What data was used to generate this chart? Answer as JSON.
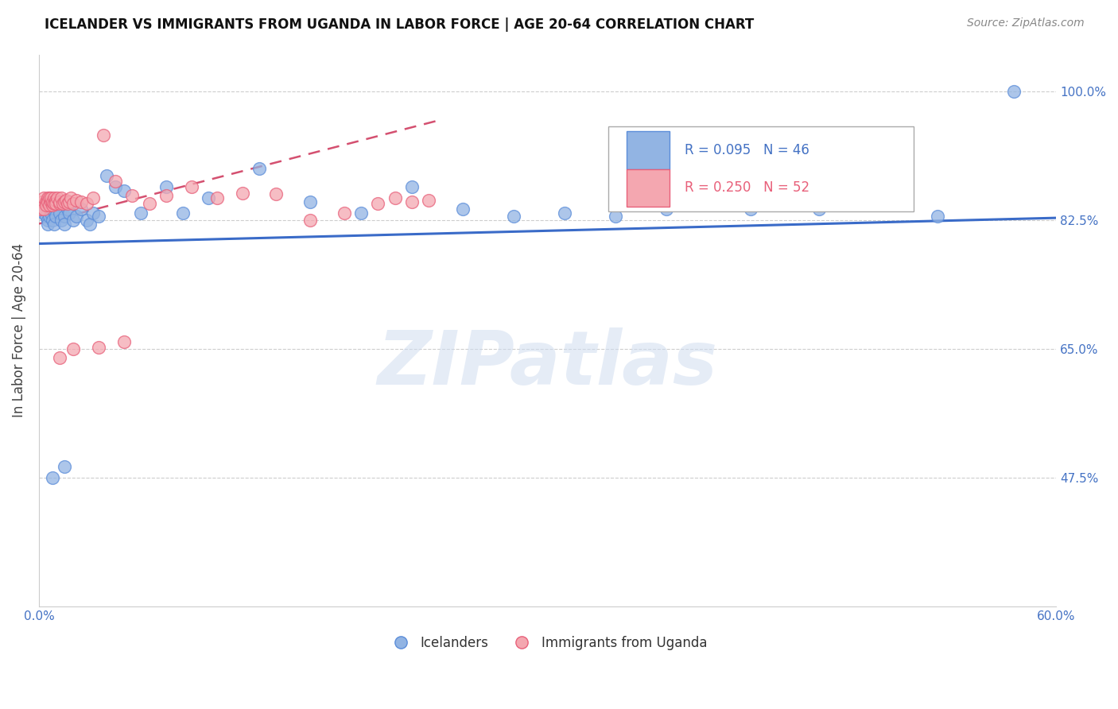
{
  "title": "ICELANDER VS IMMIGRANTS FROM UGANDA IN LABOR FORCE | AGE 20-64 CORRELATION CHART",
  "source": "Source: ZipAtlas.com",
  "ylabel": "In Labor Force | Age 20-64",
  "xlim": [
    0.0,
    0.6
  ],
  "ylim": [
    0.3,
    1.05
  ],
  "yticks": [
    0.475,
    0.65,
    0.825,
    1.0
  ],
  "ytick_labels": [
    "47.5%",
    "65.0%",
    "82.5%",
    "100.0%"
  ],
  "xticks": [
    0.0,
    0.1,
    0.2,
    0.3,
    0.4,
    0.5,
    0.6
  ],
  "xtick_labels": [
    "0.0%",
    "",
    "",
    "",
    "",
    "",
    "60.0%"
  ],
  "blue_color": "#92b4e3",
  "blue_edge_color": "#5b8dd9",
  "pink_color": "#f4a7b0",
  "pink_edge_color": "#e8607a",
  "blue_line_color": "#3a6bc8",
  "pink_line_color": "#d45070",
  "watermark": "ZIPatlas",
  "blue_x": [
    0.002,
    0.003,
    0.004,
    0.005,
    0.005,
    0.006,
    0.007,
    0.008,
    0.008,
    0.009,
    0.01,
    0.012,
    0.013,
    0.015,
    0.015,
    0.017,
    0.018,
    0.02,
    0.022,
    0.025,
    0.028,
    0.03,
    0.032,
    0.035,
    0.04,
    0.045,
    0.05,
    0.06,
    0.075,
    0.085,
    0.1,
    0.13,
    0.16,
    0.19,
    0.22,
    0.25,
    0.28,
    0.31,
    0.34,
    0.37,
    0.42,
    0.46,
    0.53,
    0.575,
    0.008,
    0.015
  ],
  "blue_y": [
    0.84,
    0.835,
    0.83,
    0.825,
    0.82,
    0.83,
    0.835,
    0.84,
    0.825,
    0.82,
    0.83,
    0.835,
    0.825,
    0.83,
    0.82,
    0.84,
    0.835,
    0.825,
    0.83,
    0.84,
    0.825,
    0.82,
    0.835,
    0.83,
    0.885,
    0.87,
    0.865,
    0.835,
    0.87,
    0.835,
    0.855,
    0.895,
    0.85,
    0.835,
    0.87,
    0.84,
    0.83,
    0.835,
    0.83,
    0.84,
    0.84,
    0.84,
    0.83,
    1.0,
    0.475,
    0.49
  ],
  "pink_x": [
    0.001,
    0.002,
    0.003,
    0.003,
    0.004,
    0.004,
    0.005,
    0.005,
    0.006,
    0.006,
    0.007,
    0.007,
    0.008,
    0.008,
    0.009,
    0.009,
    0.01,
    0.01,
    0.011,
    0.012,
    0.012,
    0.013,
    0.014,
    0.015,
    0.016,
    0.017,
    0.018,
    0.019,
    0.02,
    0.022,
    0.025,
    0.028,
    0.032,
    0.038,
    0.045,
    0.055,
    0.065,
    0.075,
    0.09,
    0.105,
    0.12,
    0.14,
    0.16,
    0.18,
    0.2,
    0.21,
    0.22,
    0.23,
    0.02,
    0.035,
    0.05,
    0.012
  ],
  "pink_y": [
    0.84,
    0.85,
    0.855,
    0.84,
    0.85,
    0.845,
    0.855,
    0.85,
    0.855,
    0.845,
    0.85,
    0.855,
    0.845,
    0.85,
    0.855,
    0.848,
    0.852,
    0.848,
    0.855,
    0.848,
    0.85,
    0.855,
    0.848,
    0.85,
    0.852,
    0.848,
    0.85,
    0.855,
    0.848,
    0.852,
    0.85,
    0.848,
    0.855,
    0.94,
    0.878,
    0.858,
    0.848,
    0.858,
    0.87,
    0.855,
    0.862,
    0.86,
    0.825,
    0.835,
    0.848,
    0.855,
    0.85,
    0.852,
    0.65,
    0.652,
    0.66,
    0.638
  ],
  "blue_line_x0": 0.0,
  "blue_line_y0": 0.793,
  "blue_line_x1": 0.6,
  "blue_line_y1": 0.828,
  "pink_line_x0": 0.0,
  "pink_line_y0": 0.82,
  "pink_line_x1": 0.235,
  "pink_line_y1": 0.96,
  "background_color": "#ffffff",
  "grid_color": "#c8c8c8",
  "axis_color": "#4472c4",
  "title_fontsize": 12,
  "source_fontsize": 10,
  "tick_fontsize": 11,
  "ylabel_fontsize": 12
}
